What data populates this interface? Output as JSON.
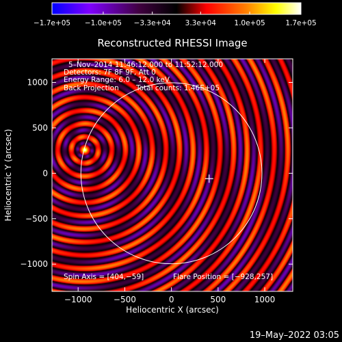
{
  "chart_data": {
    "type": "heatmap",
    "title": "Reconstructed RHESSI Image",
    "xlabel": "Heliocentric X (arcsec)",
    "ylabel": "Heliocentric Y (arcsec)",
    "xlim": [
      -1280,
      1300
    ],
    "ylim": [
      -1300,
      1260
    ],
    "x_ticks": [
      -1000,
      -500,
      0,
      500,
      1000
    ],
    "x_tick_labels": [
      "−1000",
      "−500",
      "0",
      "500",
      "1000"
    ],
    "y_ticks": [
      -1000,
      -500,
      0,
      500,
      1000
    ],
    "y_tick_labels": [
      "−1000",
      "−500",
      "0",
      "500",
      "1000"
    ],
    "colorbar": {
      "ticks": [
        -170000,
        -100000,
        -33000,
        33000,
        100000,
        170000
      ],
      "tick_labels": [
        "−1.7e+05",
        "−1.0e+05",
        "−3.3e+04",
        "3.3e+04",
        "1.0e+05",
        "1.7e+05"
      ],
      "range": [
        -170000,
        170000
      ],
      "colors": [
        "#0000ff",
        "#7f00ff",
        "#400040",
        "#000000",
        "#ff0000",
        "#ff8000",
        "#ffff00",
        "#ffffff"
      ]
    },
    "source": {
      "x": -928,
      "y": 257
    },
    "rings": {
      "wavelength": 145,
      "center_amplitude": 170000,
      "ring_amplitude": 95000
    },
    "sun_limb": {
      "center_x": 0,
      "center_y": 0,
      "radius": 970
    },
    "spin_axis_marker": {
      "x": 404,
      "y": -59
    },
    "grid": false
  },
  "annotations": {
    "time_range": "5–Nov–2014 11:46:12.000 to 11:52:12.000",
    "detectors": "Detectors: 7F 8F 9F, Att 0",
    "energy": "Energy Range: 6.0 – 12.0 keV",
    "method": "Back Projection",
    "counts": "Total counts: 1.46E+05",
    "spin_axis": "Spin Axis = [404,−59]",
    "flare_position": "Flare Position = [−928,257]"
  },
  "footer": {
    "timestamp": "19–May–2022 03:05"
  }
}
